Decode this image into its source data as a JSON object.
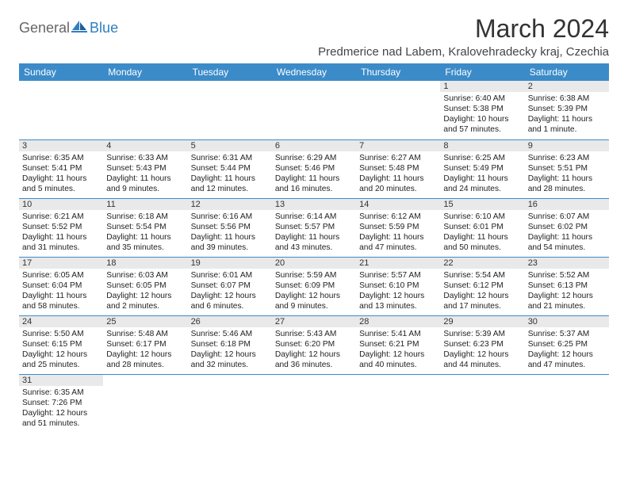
{
  "logo": {
    "general": "General",
    "blue": "Blue"
  },
  "title": "March 2024",
  "location": "Predmerice nad Labem, Kralovehradecky kraj, Czechia",
  "colors": {
    "header_bg": "#3b8bc9",
    "header_text": "#ffffff",
    "daynum_bg": "#e9e9e9",
    "border": "#3b8bc9",
    "logo_accent": "#2f7fbf"
  },
  "weekdays": [
    "Sunday",
    "Monday",
    "Tuesday",
    "Wednesday",
    "Thursday",
    "Friday",
    "Saturday"
  ],
  "weeks": [
    [
      null,
      null,
      null,
      null,
      null,
      {
        "n": "1",
        "sr": "Sunrise: 6:40 AM",
        "ss": "Sunset: 5:38 PM",
        "dl1": "Daylight: 10 hours",
        "dl2": "and 57 minutes."
      },
      {
        "n": "2",
        "sr": "Sunrise: 6:38 AM",
        "ss": "Sunset: 5:39 PM",
        "dl1": "Daylight: 11 hours",
        "dl2": "and 1 minute."
      }
    ],
    [
      {
        "n": "3",
        "sr": "Sunrise: 6:35 AM",
        "ss": "Sunset: 5:41 PM",
        "dl1": "Daylight: 11 hours",
        "dl2": "and 5 minutes."
      },
      {
        "n": "4",
        "sr": "Sunrise: 6:33 AM",
        "ss": "Sunset: 5:43 PM",
        "dl1": "Daylight: 11 hours",
        "dl2": "and 9 minutes."
      },
      {
        "n": "5",
        "sr": "Sunrise: 6:31 AM",
        "ss": "Sunset: 5:44 PM",
        "dl1": "Daylight: 11 hours",
        "dl2": "and 12 minutes."
      },
      {
        "n": "6",
        "sr": "Sunrise: 6:29 AM",
        "ss": "Sunset: 5:46 PM",
        "dl1": "Daylight: 11 hours",
        "dl2": "and 16 minutes."
      },
      {
        "n": "7",
        "sr": "Sunrise: 6:27 AM",
        "ss": "Sunset: 5:48 PM",
        "dl1": "Daylight: 11 hours",
        "dl2": "and 20 minutes."
      },
      {
        "n": "8",
        "sr": "Sunrise: 6:25 AM",
        "ss": "Sunset: 5:49 PM",
        "dl1": "Daylight: 11 hours",
        "dl2": "and 24 minutes."
      },
      {
        "n": "9",
        "sr": "Sunrise: 6:23 AM",
        "ss": "Sunset: 5:51 PM",
        "dl1": "Daylight: 11 hours",
        "dl2": "and 28 minutes."
      }
    ],
    [
      {
        "n": "10",
        "sr": "Sunrise: 6:21 AM",
        "ss": "Sunset: 5:52 PM",
        "dl1": "Daylight: 11 hours",
        "dl2": "and 31 minutes."
      },
      {
        "n": "11",
        "sr": "Sunrise: 6:18 AM",
        "ss": "Sunset: 5:54 PM",
        "dl1": "Daylight: 11 hours",
        "dl2": "and 35 minutes."
      },
      {
        "n": "12",
        "sr": "Sunrise: 6:16 AM",
        "ss": "Sunset: 5:56 PM",
        "dl1": "Daylight: 11 hours",
        "dl2": "and 39 minutes."
      },
      {
        "n": "13",
        "sr": "Sunrise: 6:14 AM",
        "ss": "Sunset: 5:57 PM",
        "dl1": "Daylight: 11 hours",
        "dl2": "and 43 minutes."
      },
      {
        "n": "14",
        "sr": "Sunrise: 6:12 AM",
        "ss": "Sunset: 5:59 PM",
        "dl1": "Daylight: 11 hours",
        "dl2": "and 47 minutes."
      },
      {
        "n": "15",
        "sr": "Sunrise: 6:10 AM",
        "ss": "Sunset: 6:01 PM",
        "dl1": "Daylight: 11 hours",
        "dl2": "and 50 minutes."
      },
      {
        "n": "16",
        "sr": "Sunrise: 6:07 AM",
        "ss": "Sunset: 6:02 PM",
        "dl1": "Daylight: 11 hours",
        "dl2": "and 54 minutes."
      }
    ],
    [
      {
        "n": "17",
        "sr": "Sunrise: 6:05 AM",
        "ss": "Sunset: 6:04 PM",
        "dl1": "Daylight: 11 hours",
        "dl2": "and 58 minutes."
      },
      {
        "n": "18",
        "sr": "Sunrise: 6:03 AM",
        "ss": "Sunset: 6:05 PM",
        "dl1": "Daylight: 12 hours",
        "dl2": "and 2 minutes."
      },
      {
        "n": "19",
        "sr": "Sunrise: 6:01 AM",
        "ss": "Sunset: 6:07 PM",
        "dl1": "Daylight: 12 hours",
        "dl2": "and 6 minutes."
      },
      {
        "n": "20",
        "sr": "Sunrise: 5:59 AM",
        "ss": "Sunset: 6:09 PM",
        "dl1": "Daylight: 12 hours",
        "dl2": "and 9 minutes."
      },
      {
        "n": "21",
        "sr": "Sunrise: 5:57 AM",
        "ss": "Sunset: 6:10 PM",
        "dl1": "Daylight: 12 hours",
        "dl2": "and 13 minutes."
      },
      {
        "n": "22",
        "sr": "Sunrise: 5:54 AM",
        "ss": "Sunset: 6:12 PM",
        "dl1": "Daylight: 12 hours",
        "dl2": "and 17 minutes."
      },
      {
        "n": "23",
        "sr": "Sunrise: 5:52 AM",
        "ss": "Sunset: 6:13 PM",
        "dl1": "Daylight: 12 hours",
        "dl2": "and 21 minutes."
      }
    ],
    [
      {
        "n": "24",
        "sr": "Sunrise: 5:50 AM",
        "ss": "Sunset: 6:15 PM",
        "dl1": "Daylight: 12 hours",
        "dl2": "and 25 minutes."
      },
      {
        "n": "25",
        "sr": "Sunrise: 5:48 AM",
        "ss": "Sunset: 6:17 PM",
        "dl1": "Daylight: 12 hours",
        "dl2": "and 28 minutes."
      },
      {
        "n": "26",
        "sr": "Sunrise: 5:46 AM",
        "ss": "Sunset: 6:18 PM",
        "dl1": "Daylight: 12 hours",
        "dl2": "and 32 minutes."
      },
      {
        "n": "27",
        "sr": "Sunrise: 5:43 AM",
        "ss": "Sunset: 6:20 PM",
        "dl1": "Daylight: 12 hours",
        "dl2": "and 36 minutes."
      },
      {
        "n": "28",
        "sr": "Sunrise: 5:41 AM",
        "ss": "Sunset: 6:21 PM",
        "dl1": "Daylight: 12 hours",
        "dl2": "and 40 minutes."
      },
      {
        "n": "29",
        "sr": "Sunrise: 5:39 AM",
        "ss": "Sunset: 6:23 PM",
        "dl1": "Daylight: 12 hours",
        "dl2": "and 44 minutes."
      },
      {
        "n": "30",
        "sr": "Sunrise: 5:37 AM",
        "ss": "Sunset: 6:25 PM",
        "dl1": "Daylight: 12 hours",
        "dl2": "and 47 minutes."
      }
    ],
    [
      {
        "n": "31",
        "sr": "Sunrise: 6:35 AM",
        "ss": "Sunset: 7:26 PM",
        "dl1": "Daylight: 12 hours",
        "dl2": "and 51 minutes."
      },
      null,
      null,
      null,
      null,
      null,
      null
    ]
  ]
}
